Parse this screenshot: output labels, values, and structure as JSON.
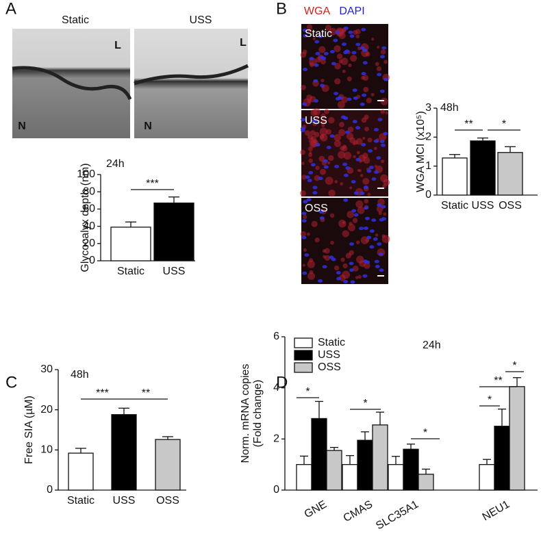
{
  "panel_labels": [
    "A",
    "B",
    "C",
    "D"
  ],
  "panel_a_images": {
    "labels": [
      "Static",
      "USS"
    ],
    "markers": [
      "L",
      "N"
    ]
  },
  "panel_b_images": {
    "legend": [
      "WGA",
      "DAPI"
    ],
    "labels": [
      "Static",
      "USS",
      "OSS"
    ]
  },
  "chart_data": [
    {
      "type": "bar",
      "title": "24h",
      "ylabel": [
        "Glycocalyx depth (nm)"
      ],
      "categories": [
        "Static",
        "USS"
      ],
      "values": [
        39,
        67
      ],
      "errors": [
        6,
        7
      ],
      "colors": [
        "#ffffff",
        "#000000"
      ],
      "ylim": [
        0,
        100
      ],
      "yticks": [
        0,
        20,
        40,
        60,
        80,
        100
      ],
      "significance": [
        "***"
      ]
    },
    {
      "type": "bar",
      "title": "48h",
      "ylabel": [
        "WGA MCI (x10⁵)"
      ],
      "categories": [
        "Static",
        "USS",
        "OSS"
      ],
      "values": [
        1.28,
        1.87,
        1.47
      ],
      "errors": [
        0.12,
        0.1,
        0.2
      ],
      "colors": [
        "#ffffff",
        "#000000",
        "#c8c8c8"
      ],
      "ylim": [
        0,
        3
      ],
      "yticks": [
        0,
        1,
        2,
        3
      ],
      "significance": [
        "**",
        "*"
      ]
    },
    {
      "type": "bar",
      "title": "48h",
      "ylabel": [
        "Free SIA (µM)"
      ],
      "categories": [
        "Static",
        "USS",
        "OSS"
      ],
      "values": [
        9.2,
        18.8,
        12.6
      ],
      "errors": [
        1.2,
        1.6,
        0.7
      ],
      "colors": [
        "#ffffff",
        "#000000",
        "#c8c8c8"
      ],
      "ylim": [
        0,
        30
      ],
      "yticks": [
        0,
        10,
        20,
        30
      ],
      "significance": [
        "***",
        "**"
      ]
    },
    {
      "type": "grouped_bar",
      "title": "24h",
      "ylabel": [
        "Norm. mRNA copies",
        "(Fold change)"
      ],
      "categories": [
        "GNE",
        "CMAS",
        "SLC35A1",
        "NEU1"
      ],
      "series": [
        {
          "name": "Static",
          "color": "#ffffff",
          "values": [
            1,
            1,
            1,
            1
          ],
          "errors": [
            0.33,
            0.35,
            0.32,
            0.2
          ]
        },
        {
          "name": "USS",
          "color": "#000000",
          "values": [
            2.8,
            1.95,
            1.6,
            2.5
          ],
          "errors": [
            0.67,
            0.33,
            0.2,
            0.67
          ]
        },
        {
          "name": "OSS",
          "color": "#c8c8c8",
          "values": [
            1.55,
            2.55,
            0.62,
            4.05
          ],
          "errors": [
            0.12,
            0.5,
            0.2,
            0.35
          ]
        }
      ],
      "ylim": [
        0,
        6
      ],
      "yticks": [
        0,
        2,
        4,
        6
      ],
      "legend": "upper left",
      "significance": [
        "*",
        "*",
        "*",
        "*",
        "**",
        "*"
      ]
    }
  ]
}
